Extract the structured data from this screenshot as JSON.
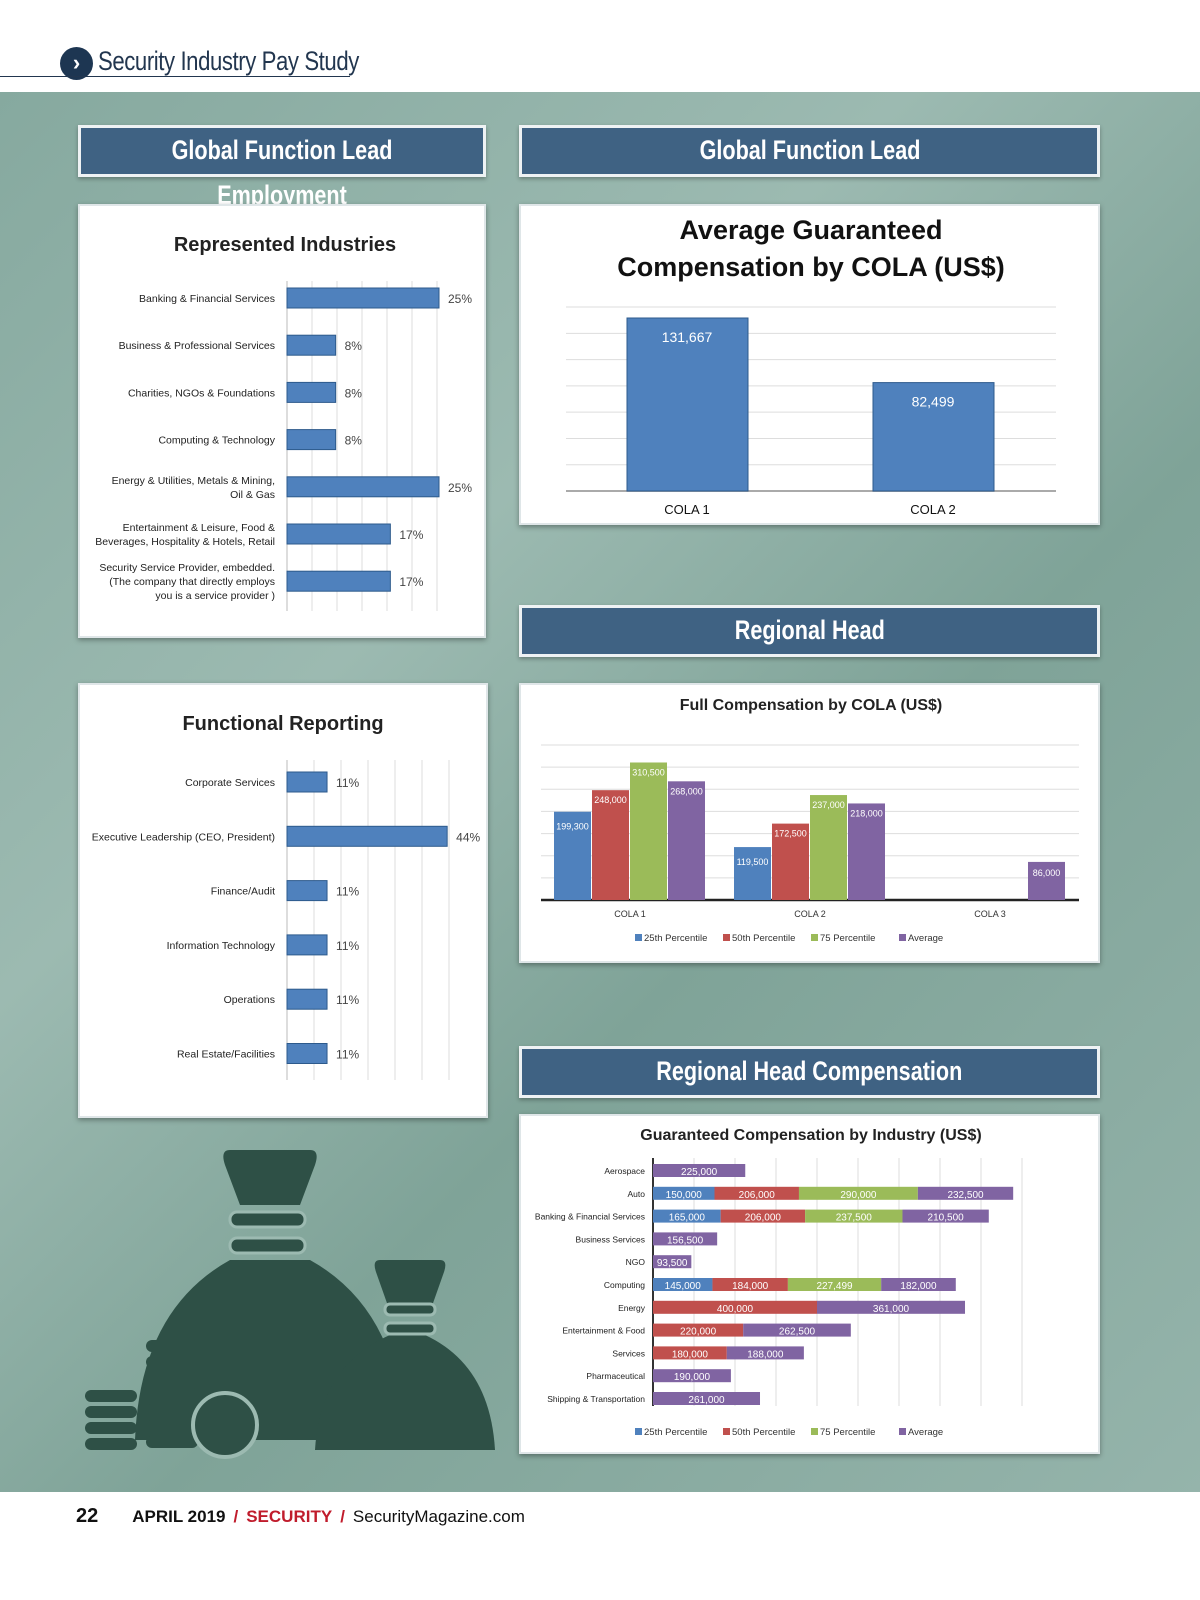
{
  "header": {
    "title": "Security Industry Pay Study",
    "icon": "chevron-right-icon"
  },
  "sections": {
    "employment": "Global Function Lead Employment",
    "global_lead": "Global Function Lead",
    "regional_head": "Regional Head",
    "regional_comp": "Regional Head Compensation"
  },
  "colors": {
    "blue": "#4f81bd",
    "red": "#c0504d",
    "green": "#9bbb59",
    "purple": "#8064a2",
    "section": "#3f6283",
    "background": "#8fb0a6"
  },
  "chart_data": [
    {
      "type": "bar",
      "orientation": "horizontal",
      "title": "Represented Industries",
      "categories": [
        [
          "Banking & Financial Services"
        ],
        [
          "Business & Professional Services"
        ],
        [
          "Charities, NGOs & Foundations"
        ],
        [
          "Computing & Technology"
        ],
        [
          "Energy & Utilities,  Metals & Mining,",
          "Oil & Gas"
        ],
        [
          "Entertainment & Leisure, Food &",
          "Beverages, Hospitality & Hotels, Retail"
        ],
        [
          "Security Service Provider, embedded.",
          "(The company that directly employs",
          "you is a service provider )"
        ]
      ],
      "values": [
        25,
        8,
        8,
        8,
        25,
        17,
        17
      ],
      "labels": [
        "25%",
        "8%",
        "8%",
        "8%",
        "25%",
        "17%",
        "17%"
      ],
      "unit": "%"
    },
    {
      "type": "bar",
      "title_lines": [
        "Average Guaranteed",
        "Compensation by COLA (US$)"
      ],
      "categories": [
        "COLA 1",
        "COLA 2"
      ],
      "values": [
        131667,
        82499
      ],
      "labels": [
        "131,667",
        "82,499"
      ],
      "ylim": [
        0,
        140000
      ],
      "grid": true
    },
    {
      "type": "bar",
      "orientation": "horizontal",
      "title": "Functional Reporting",
      "categories": [
        [
          "Corporate Services"
        ],
        [
          "Executive Leadership (CEO, President)"
        ],
        [
          "Finance/Audit"
        ],
        [
          "Information Technology"
        ],
        [
          "Operations"
        ],
        [
          "Real Estate/Facilities"
        ]
      ],
      "values": [
        11,
        44,
        11,
        11,
        11,
        11
      ],
      "labels": [
        "11%",
        "44%",
        "11%",
        "11%",
        "11%",
        "11%"
      ],
      "unit": "%"
    },
    {
      "type": "bar",
      "title": "Full Compensation by COLA (US$)",
      "categories": [
        "COLA 1",
        "COLA 2",
        "COLA 3"
      ],
      "ylim": [
        0,
        350000
      ],
      "grid": true,
      "legend": "bottom",
      "series": [
        {
          "name": "25th Percentile",
          "values": [
            199300,
            119500,
            null
          ],
          "labels": [
            "199,300",
            "119,500",
            ""
          ]
        },
        {
          "name": "50th Percentile",
          "values": [
            248000,
            172500,
            null
          ],
          "labels": [
            "248,000",
            "172,500",
            ""
          ]
        },
        {
          "name": "75 Percentile",
          "values": [
            310500,
            237000,
            null
          ],
          "labels": [
            "310,500",
            "237,000",
            ""
          ]
        },
        {
          "name": "Average",
          "values": [
            268000,
            218000,
            86000
          ],
          "labels": [
            "268,000",
            "218,000",
            "86,000"
          ]
        }
      ]
    },
    {
      "type": "bar",
      "orientation": "horizontal",
      "stacked": true,
      "title": "Guaranteed Compensation by Industry (US$)",
      "legend": "bottom",
      "xlim": [
        0,
        900000
      ],
      "grid": true,
      "categories": [
        "Aerospace",
        "Auto",
        "Banking & Financial Services",
        "Business Services",
        "NGO",
        "Computing",
        "Energy",
        "Entertainment & Food",
        "Services",
        "Pharmaceutical",
        "Shipping & Transportation"
      ],
      "series": [
        {
          "name": "25th Percentile",
          "values": [
            null,
            150000,
            165000,
            null,
            null,
            145000,
            null,
            null,
            null,
            null,
            null
          ]
        },
        {
          "name": "50th Percentile",
          "values": [
            null,
            206000,
            206000,
            null,
            null,
            184000,
            400000,
            220000,
            180000,
            null,
            null
          ]
        },
        {
          "name": "75 Percentile",
          "values": [
            null,
            290000,
            237500,
            null,
            null,
            227499,
            null,
            null,
            null,
            null,
            null
          ]
        },
        {
          "name": "Average",
          "values": [
            225000,
            232500,
            210500,
            156500,
            93500,
            182000,
            361000,
            262500,
            188000,
            190000,
            261000
          ]
        }
      ]
    }
  ],
  "footer": {
    "page": "22",
    "date": "APRIL 2019",
    "sep": "/",
    "brand": "SECURITY",
    "site": "SecurityMagazine.com"
  }
}
